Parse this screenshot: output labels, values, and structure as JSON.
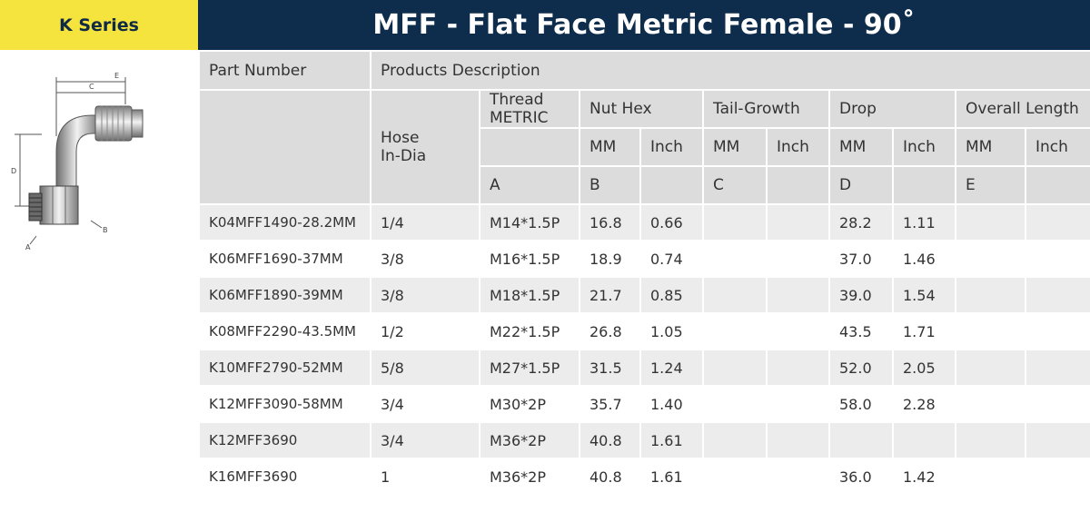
{
  "series_label": "K Series",
  "title": "MFF - Flat Face Metric Female - 90˚",
  "drawing_labels": {
    "a": "A",
    "b": "B",
    "c": "C",
    "d": "D",
    "e": "E"
  },
  "headers": {
    "part_number": "Part Number",
    "products_description": "Products Description",
    "hose_line1": "Hose",
    "hose_line2": "In-Dia",
    "thread_line1": "Thread",
    "thread_line2": "METRIC",
    "nut_hex": "Nut Hex",
    "tail_growth": "Tail-Growth",
    "drop": "Drop",
    "overall_length": "Overall Length",
    "mm": "MM",
    "inch": "Inch",
    "letters": {
      "a": "A",
      "b": "B",
      "c": "C",
      "d": "D",
      "e": "E"
    }
  },
  "rows": [
    {
      "part": "K04MFF1490-28.2MM",
      "hose": "1/4",
      "thread": "M14*1.5P",
      "nut_mm": "16.8",
      "nut_in": "0.66",
      "tail_mm": "",
      "tail_in": "",
      "drop_mm": "28.2",
      "drop_in": "1.11",
      "len_mm": "",
      "len_in": ""
    },
    {
      "part": "K06MFF1690-37MM",
      "hose": "3/8",
      "thread": "M16*1.5P",
      "nut_mm": "18.9",
      "nut_in": "0.74",
      "tail_mm": "",
      "tail_in": "",
      "drop_mm": "37.0",
      "drop_in": "1.46",
      "len_mm": "",
      "len_in": ""
    },
    {
      "part": "K06MFF1890-39MM",
      "hose": "3/8",
      "thread": "M18*1.5P",
      "nut_mm": "21.7",
      "nut_in": "0.85",
      "tail_mm": "",
      "tail_in": "",
      "drop_mm": "39.0",
      "drop_in": "1.54",
      "len_mm": "",
      "len_in": ""
    },
    {
      "part": "K08MFF2290-43.5MM",
      "hose": "1/2",
      "thread": "M22*1.5P",
      "nut_mm": "26.8",
      "nut_in": "1.05",
      "tail_mm": "",
      "tail_in": "",
      "drop_mm": "43.5",
      "drop_in": "1.71",
      "len_mm": "",
      "len_in": ""
    },
    {
      "part": "K10MFF2790-52MM",
      "hose": "5/8",
      "thread": "M27*1.5P",
      "nut_mm": "31.5",
      "nut_in": "1.24",
      "tail_mm": "",
      "tail_in": "",
      "drop_mm": "52.0",
      "drop_in": "2.05",
      "len_mm": "",
      "len_in": ""
    },
    {
      "part": "K12MFF3090-58MM",
      "hose": "3/4",
      "thread": "M30*2P",
      "nut_mm": "35.7",
      "nut_in": "1.40",
      "tail_mm": "",
      "tail_in": "",
      "drop_mm": "58.0",
      "drop_in": "2.28",
      "len_mm": "",
      "len_in": ""
    },
    {
      "part": "K12MFF3690",
      "hose": "3/4",
      "thread": "M36*2P",
      "nut_mm": "40.8",
      "nut_in": "1.61",
      "tail_mm": "",
      "tail_in": "",
      "drop_mm": "",
      "drop_in": "",
      "len_mm": "",
      "len_in": ""
    },
    {
      "part": "K16MFF3690",
      "hose": "1",
      "thread": "M36*2P",
      "nut_mm": "40.8",
      "nut_in": "1.61",
      "tail_mm": "",
      "tail_in": "",
      "drop_mm": "36.0",
      "drop_in": "1.42",
      "len_mm": "",
      "len_in": ""
    }
  ]
}
